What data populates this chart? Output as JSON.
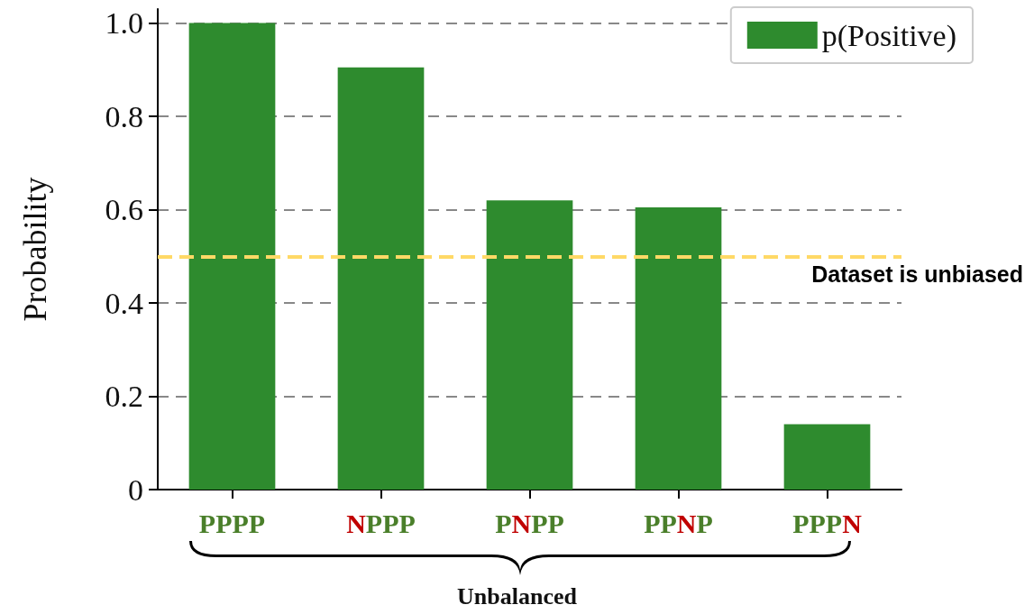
{
  "chart_data": {
    "type": "bar",
    "ylabel": "Probability",
    "categories": [
      "PPPP",
      "NPPP",
      "PNPP",
      "PPNP",
      "PPPN"
    ],
    "series": [
      {
        "name": "p(Positive)",
        "color": "#2e8b2e",
        "values": [
          1.0,
          0.905,
          0.62,
          0.605,
          0.14
        ]
      }
    ],
    "ylim": [
      0,
      1.03
    ],
    "yticks": [
      0,
      0.2,
      0.4,
      0.6,
      0.8,
      {
        "value": 1,
        "label": "1.0"
      }
    ],
    "grid": "y",
    "legend": "top right",
    "ref_lines": [
      {
        "axis": "y",
        "value": 0.5,
        "label": "Dataset is unbiased",
        "color": "#ffd966",
        "line_style": "dashed"
      }
    ],
    "annotations": [
      "Unbalanced"
    ]
  }
}
